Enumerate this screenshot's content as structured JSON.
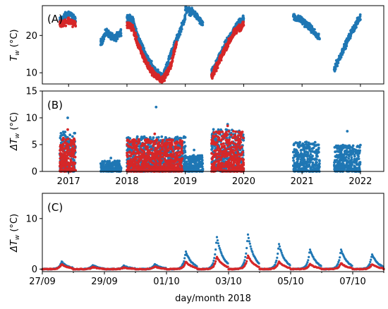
{
  "colors": {
    "series_1": "#1f77b4",
    "series_2": "#d62728",
    "axes": "#000000",
    "background": "#ffffff"
  },
  "chart_data": [
    {
      "type": "scatter",
      "panel": "A",
      "panel_tag": "(A)",
      "ylabel": "T_w (°C)",
      "ylabel_base": "T",
      "ylabel_sub": "w",
      "ylabel_unit": " (°C)",
      "xlim": [
        2016.55,
        2022.4
      ],
      "ylim": [
        7,
        28
      ],
      "yticks": [
        10,
        20
      ],
      "xticks": [
        2017,
        2018,
        2019,
        2020,
        2021,
        2022
      ],
      "x_tick_labels_shown": false,
      "series": [
        {
          "color": "#1f77b4",
          "segments": [
            {
              "x": [
                2016.85,
                2017.0,
                2017.12
              ],
              "y": [
                24,
                26,
                24
              ]
            },
            {
              "x": [
                2017.55,
                2017.65,
                2017.78,
                2017.9
              ],
              "y": [
                18,
                21,
                19,
                21
              ]
            },
            {
              "x": [
                2018.0,
                2018.1,
                2018.2,
                2018.35,
                2018.5,
                2018.62
              ],
              "y": [
                25,
                24,
                19,
                14,
                10,
                9
              ]
            },
            {
              "x": [
                2018.62,
                2018.75,
                2018.88,
                2019.0
              ],
              "y": [
                9,
                15,
                20,
                25
              ]
            },
            {
              "x": [
                2019.0,
                2019.15,
                2019.3
              ],
              "y": [
                27,
                26,
                23
              ]
            },
            {
              "x": [
                2019.45,
                2019.55,
                2019.7,
                2019.85,
                2020.0
              ],
              "y": [
                10,
                13,
                18,
                22,
                25
              ]
            },
            {
              "x": [
                2020.85,
                2021.0,
                2021.15,
                2021.3
              ],
              "y": [
                25,
                24,
                22,
                19
              ]
            },
            {
              "x": [
                2021.55,
                2021.7,
                2021.85,
                2022.0
              ],
              "y": [
                11,
                16,
                21,
                25
              ]
            }
          ]
        },
        {
          "color": "#d62728",
          "segments": [
            {
              "x": [
                2016.85,
                2017.0,
                2017.12
              ],
              "y": [
                23,
                24,
                23
              ]
            },
            {
              "x": [
                2018.0,
                2018.1,
                2018.2,
                2018.35,
                2018.5,
                2018.62
              ],
              "y": [
                23,
                22,
                17,
                12,
                9,
                8
              ]
            },
            {
              "x": [
                2018.62,
                2018.75,
                2018.85
              ],
              "y": [
                8,
                12,
                18
              ]
            },
            {
              "x": [
                2019.45,
                2019.55,
                2019.7,
                2019.85,
                2020.0
              ],
              "y": [
                9,
                12,
                17,
                21,
                23
              ]
            }
          ]
        }
      ]
    },
    {
      "type": "scatter",
      "panel": "B",
      "panel_tag": "(B)",
      "ylabel": "ΔT_w (°C)",
      "ylabel_base": "ΔT",
      "ylabel_sub": "w",
      "ylabel_unit": " (°C)",
      "xlim": [
        2016.55,
        2022.4
      ],
      "ylim": [
        0,
        15
      ],
      "yticks": [
        0,
        5,
        10,
        15
      ],
      "xticks": [
        2017,
        2018,
        2019,
        2020,
        2021,
        2022
      ],
      "x_tick_labels": [
        "2017",
        "2018",
        "2019",
        "2020",
        "2021",
        "2022"
      ],
      "series": [
        {
          "color": "#1f77b4",
          "segments": [
            {
              "x0": 2016.85,
              "x1": 2017.12,
              "top": 7.5,
              "max": 10.0
            },
            {
              "x0": 2017.55,
              "x1": 2017.9,
              "top": 2.0,
              "max": 2.5
            },
            {
              "x0": 2018.0,
              "x1": 2019.0,
              "top": 6.5,
              "max": 12.0
            },
            {
              "x0": 2019.0,
              "x1": 2019.3,
              "top": 3.0,
              "max": 4.0
            },
            {
              "x0": 2019.45,
              "x1": 2020.0,
              "top": 8.0,
              "max": 8.8
            },
            {
              "x0": 2020.85,
              "x1": 2021.3,
              "top": 5.5,
              "max": 5.5
            },
            {
              "x0": 2021.55,
              "x1": 2022.0,
              "top": 5.0,
              "max": 7.5
            }
          ]
        },
        {
          "color": "#d62728",
          "segments": [
            {
              "x0": 2016.85,
              "x1": 2017.12,
              "top": 6.5,
              "max": 7.8
            },
            {
              "x0": 2018.0,
              "x1": 2018.95,
              "top": 6.0,
              "max": 7.0
            },
            {
              "x0": 2019.45,
              "x1": 2020.0,
              "top": 7.5,
              "max": 8.5
            }
          ]
        }
      ]
    },
    {
      "type": "scatter",
      "panel": "C",
      "panel_tag": "(C)",
      "ylabel": "ΔT_w (°C)",
      "ylabel_base": "ΔT",
      "ylabel_sub": "w",
      "ylabel_unit": " (°C)",
      "xlabel": "day/month 2018",
      "xlim": [
        "2018-09-27",
        "2018-10-08"
      ],
      "ylim": [
        -0.5,
        15
      ],
      "yticks": [
        0,
        10
      ],
      "x_tick_labels": [
        "27/09",
        "29/09",
        "01/10",
        "03/10",
        "05/10",
        "07/10"
      ],
      "series": [
        {
          "color": "#1f77b4",
          "daily_peaks": [
            {
              "date": "2018-09-27",
              "value": 1.5
            },
            {
              "date": "2018-09-28",
              "value": 0.8
            },
            {
              "date": "2018-09-29",
              "value": 0.7
            },
            {
              "date": "2018-09-30",
              "value": 1.0
            },
            {
              "date": "2018-10-01",
              "value": 3.5
            },
            {
              "date": "2018-10-02",
              "value": 6.5
            },
            {
              "date": "2018-10-03",
              "value": 7.0
            },
            {
              "date": "2018-10-04",
              "value": 5.0
            },
            {
              "date": "2018-10-05",
              "value": 4.0
            },
            {
              "date": "2018-10-06",
              "value": 4.0
            },
            {
              "date": "2018-10-07",
              "value": 3.0
            },
            {
              "date": "2018-10-08",
              "value": 1.0
            }
          ]
        },
        {
          "color": "#d62728",
          "daily_peaks": [
            {
              "date": "2018-09-27",
              "value": 1.0
            },
            {
              "date": "2018-09-28",
              "value": 0.4
            },
            {
              "date": "2018-09-29",
              "value": 0.3
            },
            {
              "date": "2018-09-30",
              "value": 0.5
            },
            {
              "date": "2018-10-01",
              "value": 1.5
            },
            {
              "date": "2018-10-02",
              "value": 2.5
            },
            {
              "date": "2018-10-03",
              "value": 2.7
            },
            {
              "date": "2018-10-04",
              "value": 1.5
            },
            {
              "date": "2018-10-05",
              "value": 1.0
            },
            {
              "date": "2018-10-06",
              "value": 1.2
            },
            {
              "date": "2018-10-07",
              "value": 1.0
            },
            {
              "date": "2018-10-08",
              "value": 0.4
            }
          ]
        }
      ]
    }
  ]
}
